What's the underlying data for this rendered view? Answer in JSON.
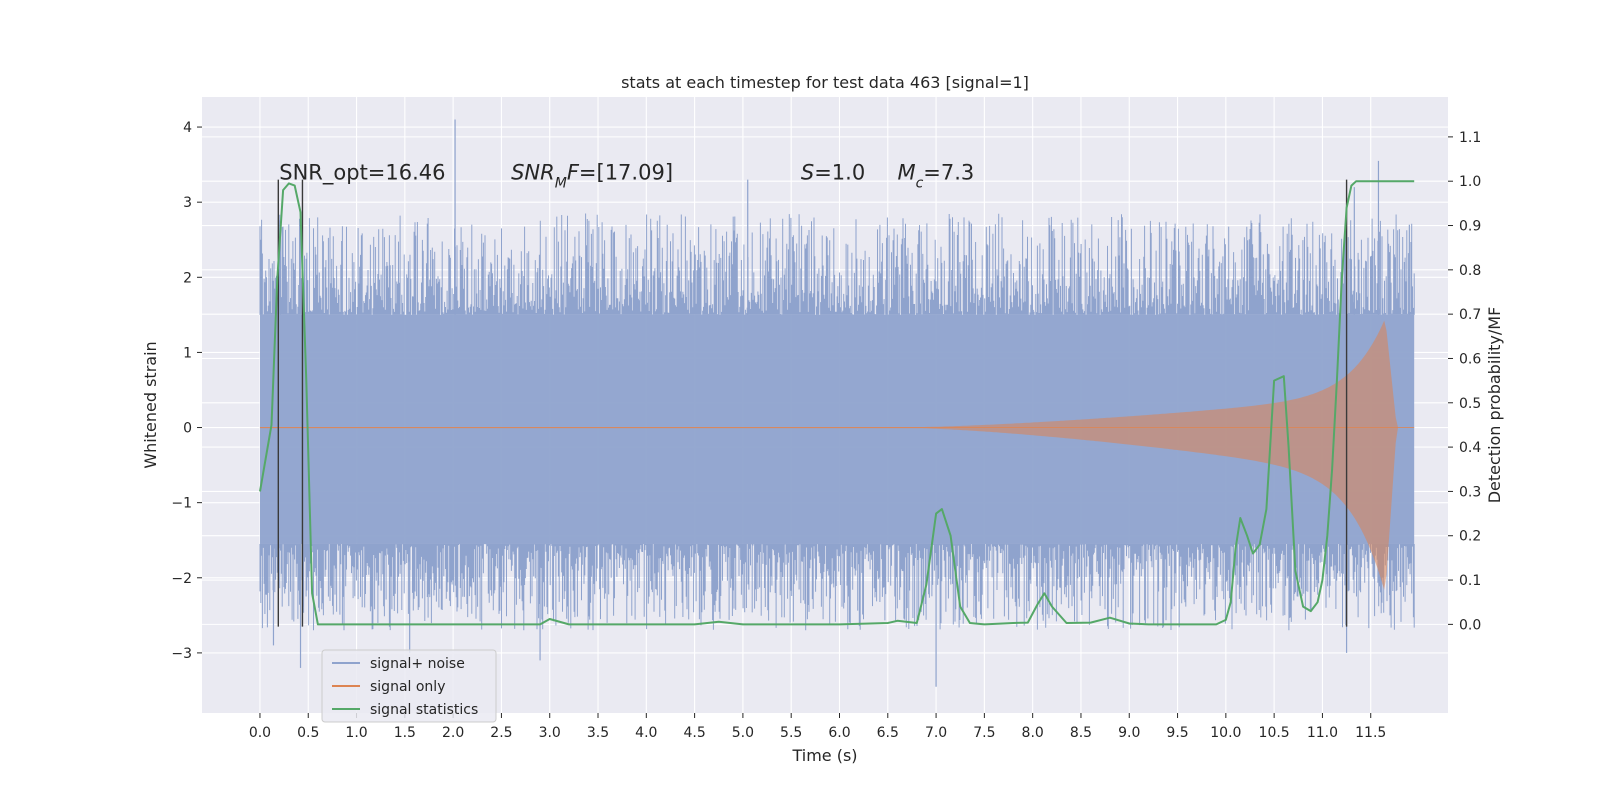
{
  "chart_data": {
    "type": "line",
    "title": "stats at each timestep for test data 463 [signal=1]",
    "xlabel": "Time (s)",
    "ylabel": "Whitened strain",
    "ylabel_right": "Detection probability/MF",
    "xlim": [
      -0.6,
      12.3
    ],
    "ylim": [
      -3.8,
      4.4
    ],
    "ylim_right": [
      -0.2,
      1.19
    ],
    "x_ticks": [
      0.0,
      0.5,
      1.0,
      1.5,
      2.0,
      2.5,
      3.0,
      3.5,
      4.0,
      4.5,
      5.0,
      5.5,
      6.0,
      6.5,
      7.0,
      7.5,
      8.0,
      8.5,
      9.0,
      9.5,
      10.0,
      10.5,
      11.0,
      11.5
    ],
    "x_tick_labels": [
      "0.0",
      "0.5",
      "1.0",
      "1.5",
      "2.0",
      "2.5",
      "3.0",
      "3.5",
      "4.0",
      "4.5",
      "5.0",
      "5.5",
      "6.0",
      "6.5",
      "7.0",
      "7.5",
      "8.0",
      "8.5",
      "9.0",
      "9.5",
      "10.0",
      "10.5",
      "11.0",
      "11.5"
    ],
    "y_ticks": [
      -3,
      -2,
      -1,
      0,
      1,
      2,
      3,
      4
    ],
    "y_tick_labels": [
      "−3",
      "−2",
      "−1",
      "0",
      "1",
      "2",
      "3",
      "4"
    ],
    "y_right_ticks": [
      0.0,
      0.1,
      0.2,
      0.3,
      0.4,
      0.5,
      0.6,
      0.7,
      0.8,
      0.9,
      1.0,
      1.1
    ],
    "y_right_tick_labels": [
      "0.0",
      "0.1",
      "0.2",
      "0.3",
      "0.4",
      "0.5",
      "0.6",
      "0.7",
      "0.8",
      "0.9",
      "1.0",
      "1.1"
    ],
    "grid": true,
    "legend_position": "bottom-left",
    "annotations": [
      {
        "x": 0.2,
        "y": 3.3,
        "parts": [
          {
            "t": "SNR_opt=16.46",
            "i": false
          }
        ]
      },
      {
        "x": 2.6,
        "y": 3.3,
        "parts": [
          {
            "t": "SNR",
            "i": true
          },
          {
            "t": "M",
            "i": true,
            "sub": true
          },
          {
            "t": "F",
            "i": true
          },
          {
            "t": "=[17.09]",
            "i": false
          }
        ]
      },
      {
        "x": 5.6,
        "y": 3.3,
        "parts": [
          {
            "t": "S",
            "i": true
          },
          {
            "t": "=1.0",
            "i": false
          }
        ]
      },
      {
        "x": 6.6,
        "y": 3.3,
        "parts": [
          {
            "t": "M",
            "i": true
          },
          {
            "t": "c",
            "i": true,
            "sub": true
          },
          {
            "t": "=7.3",
            "i": false
          }
        ]
      }
    ],
    "vertical_markers": [
      {
        "x": 0.19,
        "y_top": 3.3,
        "y_bottom": -2.65
      },
      {
        "x": 0.44,
        "y_top": 3.3,
        "y_bottom": -2.65
      },
      {
        "x": 11.25,
        "y_top": 3.3,
        "y_bottom": -2.65
      }
    ],
    "series": [
      {
        "name": "signal+ noise",
        "color": "#8fa3cd",
        "axis": "left",
        "x_range": [
          0.0,
          11.95
        ],
        "band": [
          -1.55,
          1.5
        ],
        "peaks": [
          [
            0.01,
            2.5
          ],
          [
            0.21,
            2.6
          ],
          [
            2.02,
            4.1
          ],
          [
            5.05,
            3.3
          ],
          [
            11.33,
            3.2
          ],
          [
            11.58,
            3.55
          ],
          [
            11.9,
            2.7
          ]
        ],
        "troughs": [
          [
            0.01,
            -1.6
          ],
          [
            0.14,
            -2.9
          ],
          [
            0.42,
            -3.2
          ],
          [
            1.55,
            -3.0
          ],
          [
            2.9,
            -3.1
          ],
          [
            7.0,
            -3.45
          ],
          [
            11.25,
            -3.0
          ],
          [
            11.7,
            -2.5
          ]
        ]
      },
      {
        "name": "signal only",
        "color": "#dd8452",
        "axis": "left",
        "x_range": [
          0.0,
          11.95
        ],
        "envelope_start": 6.8,
        "peak_time": 11.65,
        "peak_up": 1.45,
        "peak_down": -2.2
      },
      {
        "name": "signal statistics",
        "color": "#55a868",
        "axis": "right",
        "x": [
          0.0,
          0.12,
          0.18,
          0.24,
          0.3,
          0.36,
          0.42,
          0.48,
          0.54,
          0.6,
          0.66,
          0.72,
          1.5,
          2.9,
          3.0,
          3.2,
          4.5,
          4.75,
          5.0,
          5.5,
          6.0,
          6.5,
          6.6,
          6.8,
          6.9,
          7.0,
          7.06,
          7.15,
          7.25,
          7.35,
          7.5,
          7.8,
          7.95,
          8.05,
          8.12,
          8.2,
          8.35,
          8.6,
          8.8,
          9.0,
          9.2,
          9.5,
          9.8,
          9.9,
          10.0,
          10.05,
          10.1,
          10.15,
          10.22,
          10.28,
          10.35,
          10.42,
          10.5,
          10.6,
          10.65,
          10.72,
          10.8,
          10.88,
          10.95,
          11.0,
          11.05,
          11.1,
          11.15,
          11.2,
          11.25,
          11.3,
          11.35,
          11.45,
          11.6,
          11.95
        ],
        "y": [
          0.3,
          0.45,
          0.78,
          0.98,
          0.995,
          0.99,
          0.93,
          0.55,
          0.07,
          0.0,
          0.0,
          0.0,
          0.0,
          0.0,
          0.012,
          0.0,
          0.0,
          0.006,
          0.0,
          0.0,
          0.0,
          0.003,
          0.008,
          0.003,
          0.09,
          0.25,
          0.26,
          0.2,
          0.04,
          0.003,
          0.0,
          0.003,
          0.004,
          0.045,
          0.07,
          0.04,
          0.003,
          0.004,
          0.015,
          0.002,
          0.0,
          0.0,
          0.0,
          0.0,
          0.01,
          0.05,
          0.17,
          0.24,
          0.2,
          0.16,
          0.18,
          0.26,
          0.55,
          0.56,
          0.4,
          0.12,
          0.04,
          0.03,
          0.05,
          0.1,
          0.2,
          0.35,
          0.55,
          0.78,
          0.94,
          0.99,
          1.0,
          1.0,
          1.0,
          1.0
        ]
      }
    ]
  }
}
